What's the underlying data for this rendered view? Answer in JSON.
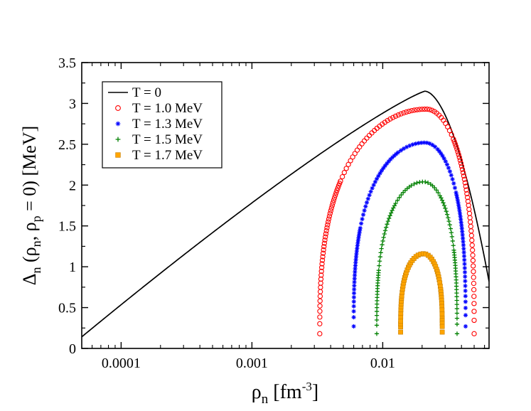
{
  "chart_data": {
    "type": "line+scatter",
    "x_scale": "log",
    "xlim": [
      5e-05,
      0.065
    ],
    "ylim": [
      0,
      3.5
    ],
    "x_ticks": [
      0.0001,
      0.001,
      0.01
    ],
    "x_tick_labels": [
      "0.0001",
      "0.001",
      "0.01"
    ],
    "y_ticks": [
      0,
      0.5,
      1,
      1.5,
      2,
      2.5,
      3,
      3.5
    ],
    "y_tick_labels": [
      "0",
      "0.5",
      "1",
      "1.5",
      "2",
      "2.5",
      "3",
      "3.5"
    ],
    "xlabel": {
      "main": "ρ",
      "sub": "n",
      "unit_open": " [fm",
      "unit_sup": "-3",
      "unit_close": "]"
    },
    "ylabel": {
      "p1": "Δ",
      "p1_sub": "n",
      "p2": " (ρ",
      "p2_sub": "n",
      "p3": ", ρ",
      "p3_sub": "p",
      "p4": " = 0) [MeV]"
    },
    "legend_position": "top-left",
    "series": [
      {
        "name": "T = 0",
        "kind": "line",
        "color": "#000000",
        "peak_x": 0.021,
        "peak_y": 3.15,
        "x_min": 5e-05,
        "x_max": 0.065
      },
      {
        "name": "T = 1.0 MeV",
        "kind": "markers",
        "marker": "circle",
        "color": "#ff0000",
        "x_min": 0.0033,
        "x_max": 0.05,
        "peak_x": 0.0215,
        "peak_y": 2.93,
        "end_y": 0.18
      },
      {
        "name": "T = 1.3 MeV",
        "kind": "markers",
        "marker": "star",
        "color": "#0000ff",
        "x_min": 0.006,
        "x_max": 0.043,
        "peak_x": 0.021,
        "peak_y": 2.52,
        "end_y": 0.27
      },
      {
        "name": "T = 1.5 MeV",
        "kind": "markers",
        "marker": "plus",
        "color": "#008000",
        "x_min": 0.009,
        "x_max": 0.037,
        "peak_x": 0.0205,
        "peak_y": 2.04,
        "end_y": 0.18
      },
      {
        "name": "T = 1.7 MeV",
        "kind": "markers",
        "marker": "square",
        "color": "#ffa500",
        "x_min": 0.0137,
        "x_max": 0.0285,
        "peak_x": 0.0205,
        "peak_y": 1.16,
        "end_y": 0.2
      }
    ]
  }
}
